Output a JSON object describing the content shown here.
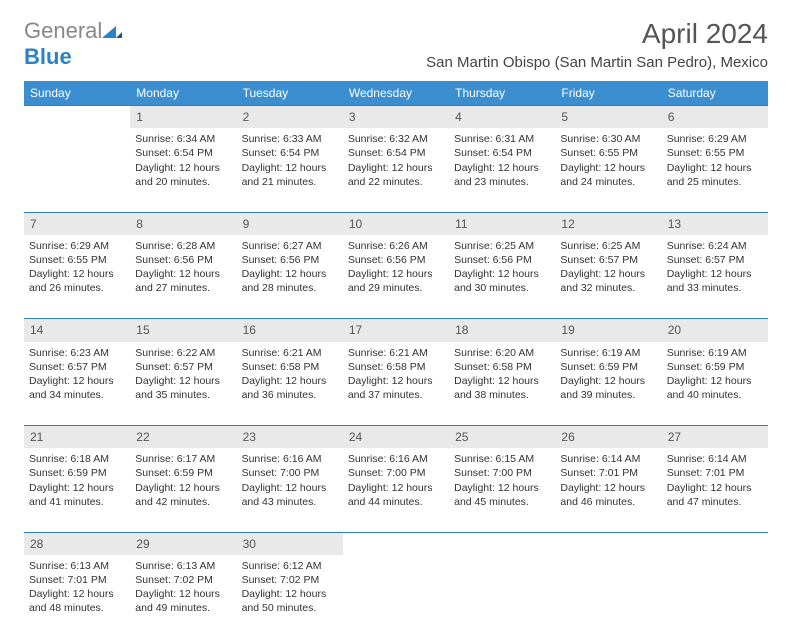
{
  "logo": {
    "part1": "General",
    "part2": "Blue"
  },
  "title": "April 2024",
  "location": "San Martin Obispo (San Martin San Pedro), Mexico",
  "headers": [
    "Sunday",
    "Monday",
    "Tuesday",
    "Wednesday",
    "Thursday",
    "Friday",
    "Saturday"
  ],
  "colors": {
    "header_bg": "#3b8ed0",
    "header_fg": "#ffffff",
    "border": "#2b82c9",
    "daynum_bg": "#e9e9e9",
    "text": "#333333"
  },
  "weeks": [
    {
      "nums": [
        "",
        "1",
        "2",
        "3",
        "4",
        "5",
        "6"
      ],
      "cells": [
        null,
        {
          "sunrise": "Sunrise: 6:34 AM",
          "sunset": "Sunset: 6:54 PM",
          "day1": "Daylight: 12 hours",
          "day2": "and 20 minutes."
        },
        {
          "sunrise": "Sunrise: 6:33 AM",
          "sunset": "Sunset: 6:54 PM",
          "day1": "Daylight: 12 hours",
          "day2": "and 21 minutes."
        },
        {
          "sunrise": "Sunrise: 6:32 AM",
          "sunset": "Sunset: 6:54 PM",
          "day1": "Daylight: 12 hours",
          "day2": "and 22 minutes."
        },
        {
          "sunrise": "Sunrise: 6:31 AM",
          "sunset": "Sunset: 6:54 PM",
          "day1": "Daylight: 12 hours",
          "day2": "and 23 minutes."
        },
        {
          "sunrise": "Sunrise: 6:30 AM",
          "sunset": "Sunset: 6:55 PM",
          "day1": "Daylight: 12 hours",
          "day2": "and 24 minutes."
        },
        {
          "sunrise": "Sunrise: 6:29 AM",
          "sunset": "Sunset: 6:55 PM",
          "day1": "Daylight: 12 hours",
          "day2": "and 25 minutes."
        }
      ]
    },
    {
      "nums": [
        "7",
        "8",
        "9",
        "10",
        "11",
        "12",
        "13"
      ],
      "cells": [
        {
          "sunrise": "Sunrise: 6:29 AM",
          "sunset": "Sunset: 6:55 PM",
          "day1": "Daylight: 12 hours",
          "day2": "and 26 minutes."
        },
        {
          "sunrise": "Sunrise: 6:28 AM",
          "sunset": "Sunset: 6:56 PM",
          "day1": "Daylight: 12 hours",
          "day2": "and 27 minutes."
        },
        {
          "sunrise": "Sunrise: 6:27 AM",
          "sunset": "Sunset: 6:56 PM",
          "day1": "Daylight: 12 hours",
          "day2": "and 28 minutes."
        },
        {
          "sunrise": "Sunrise: 6:26 AM",
          "sunset": "Sunset: 6:56 PM",
          "day1": "Daylight: 12 hours",
          "day2": "and 29 minutes."
        },
        {
          "sunrise": "Sunrise: 6:25 AM",
          "sunset": "Sunset: 6:56 PM",
          "day1": "Daylight: 12 hours",
          "day2": "and 30 minutes."
        },
        {
          "sunrise": "Sunrise: 6:25 AM",
          "sunset": "Sunset: 6:57 PM",
          "day1": "Daylight: 12 hours",
          "day2": "and 32 minutes."
        },
        {
          "sunrise": "Sunrise: 6:24 AM",
          "sunset": "Sunset: 6:57 PM",
          "day1": "Daylight: 12 hours",
          "day2": "and 33 minutes."
        }
      ]
    },
    {
      "nums": [
        "14",
        "15",
        "16",
        "17",
        "18",
        "19",
        "20"
      ],
      "cells": [
        {
          "sunrise": "Sunrise: 6:23 AM",
          "sunset": "Sunset: 6:57 PM",
          "day1": "Daylight: 12 hours",
          "day2": "and 34 minutes."
        },
        {
          "sunrise": "Sunrise: 6:22 AM",
          "sunset": "Sunset: 6:57 PM",
          "day1": "Daylight: 12 hours",
          "day2": "and 35 minutes."
        },
        {
          "sunrise": "Sunrise: 6:21 AM",
          "sunset": "Sunset: 6:58 PM",
          "day1": "Daylight: 12 hours",
          "day2": "and 36 minutes."
        },
        {
          "sunrise": "Sunrise: 6:21 AM",
          "sunset": "Sunset: 6:58 PM",
          "day1": "Daylight: 12 hours",
          "day2": "and 37 minutes."
        },
        {
          "sunrise": "Sunrise: 6:20 AM",
          "sunset": "Sunset: 6:58 PM",
          "day1": "Daylight: 12 hours",
          "day2": "and 38 minutes."
        },
        {
          "sunrise": "Sunrise: 6:19 AM",
          "sunset": "Sunset: 6:59 PM",
          "day1": "Daylight: 12 hours",
          "day2": "and 39 minutes."
        },
        {
          "sunrise": "Sunrise: 6:19 AM",
          "sunset": "Sunset: 6:59 PM",
          "day1": "Daylight: 12 hours",
          "day2": "and 40 minutes."
        }
      ]
    },
    {
      "nums": [
        "21",
        "22",
        "23",
        "24",
        "25",
        "26",
        "27"
      ],
      "cells": [
        {
          "sunrise": "Sunrise: 6:18 AM",
          "sunset": "Sunset: 6:59 PM",
          "day1": "Daylight: 12 hours",
          "day2": "and 41 minutes."
        },
        {
          "sunrise": "Sunrise: 6:17 AM",
          "sunset": "Sunset: 6:59 PM",
          "day1": "Daylight: 12 hours",
          "day2": "and 42 minutes."
        },
        {
          "sunrise": "Sunrise: 6:16 AM",
          "sunset": "Sunset: 7:00 PM",
          "day1": "Daylight: 12 hours",
          "day2": "and 43 minutes."
        },
        {
          "sunrise": "Sunrise: 6:16 AM",
          "sunset": "Sunset: 7:00 PM",
          "day1": "Daylight: 12 hours",
          "day2": "and 44 minutes."
        },
        {
          "sunrise": "Sunrise: 6:15 AM",
          "sunset": "Sunset: 7:00 PM",
          "day1": "Daylight: 12 hours",
          "day2": "and 45 minutes."
        },
        {
          "sunrise": "Sunrise: 6:14 AM",
          "sunset": "Sunset: 7:01 PM",
          "day1": "Daylight: 12 hours",
          "day2": "and 46 minutes."
        },
        {
          "sunrise": "Sunrise: 6:14 AM",
          "sunset": "Sunset: 7:01 PM",
          "day1": "Daylight: 12 hours",
          "day2": "and 47 minutes."
        }
      ]
    },
    {
      "nums": [
        "28",
        "29",
        "30",
        "",
        "",
        "",
        ""
      ],
      "cells": [
        {
          "sunrise": "Sunrise: 6:13 AM",
          "sunset": "Sunset: 7:01 PM",
          "day1": "Daylight: 12 hours",
          "day2": "and 48 minutes."
        },
        {
          "sunrise": "Sunrise: 6:13 AM",
          "sunset": "Sunset: 7:02 PM",
          "day1": "Daylight: 12 hours",
          "day2": "and 49 minutes."
        },
        {
          "sunrise": "Sunrise: 6:12 AM",
          "sunset": "Sunset: 7:02 PM",
          "day1": "Daylight: 12 hours",
          "day2": "and 50 minutes."
        },
        null,
        null,
        null,
        null
      ]
    }
  ]
}
